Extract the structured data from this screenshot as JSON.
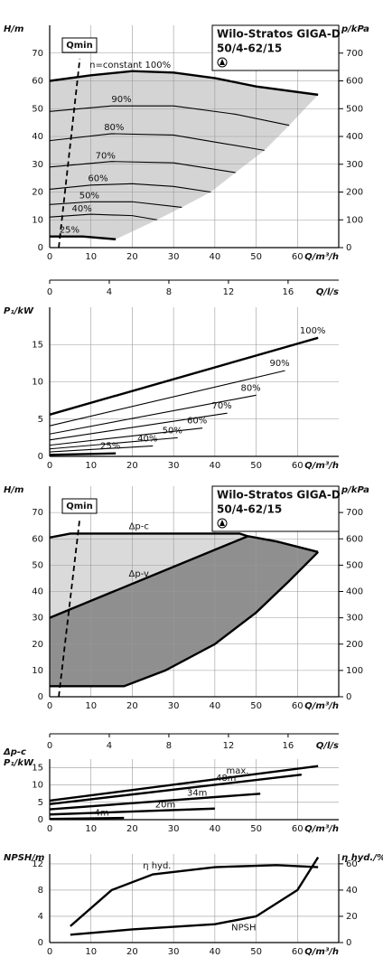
{
  "chart_data": [
    {
      "type": "line",
      "title": "Wilo-Stratos GIGA-D",
      "subtitle": "50/4-62/15",
      "y_label": "H/m",
      "y2_label": "p/kPa",
      "x_label": "Q/m³/h",
      "xlim": [
        0,
        70
      ],
      "xticks": [
        0,
        10,
        20,
        30,
        40,
        50,
        60
      ],
      "ylim": [
        0,
        80
      ],
      "yticks": [
        0,
        10,
        20,
        30,
        40,
        50,
        60,
        70
      ],
      "y2lim": [
        0,
        800
      ],
      "y2ticks": [
        0,
        100,
        200,
        300,
        400,
        500,
        600,
        700
      ],
      "grid": true,
      "fill": "#d4d4d4",
      "qmin": {
        "label": "Qmin",
        "x": [
          2.2,
          7.3
        ],
        "values": [
          0,
          68
        ]
      },
      "series": [
        {
          "name": "n=constant 100%",
          "color": "#000",
          "bold": true,
          "x": [
            0,
            10,
            20,
            30,
            40,
            50,
            65
          ],
          "values": [
            60,
            62,
            63.5,
            63,
            61,
            58,
            55
          ]
        },
        {
          "name": "90%",
          "color": "#000",
          "x": [
            0,
            15,
            30,
            45,
            58
          ],
          "values": [
            49,
            51,
            51,
            48,
            44
          ]
        },
        {
          "name": "80%",
          "color": "#000",
          "x": [
            0,
            15,
            30,
            40,
            52
          ],
          "values": [
            38.5,
            41,
            40.5,
            38,
            35
          ]
        },
        {
          "name": "70%",
          "color": "#000",
          "x": [
            0,
            15,
            30,
            45
          ],
          "values": [
            29,
            31,
            30.5,
            27
          ]
        },
        {
          "name": "60%",
          "color": "#000",
          "x": [
            0,
            10,
            20,
            30,
            39
          ],
          "values": [
            21,
            22.5,
            23,
            22,
            20
          ]
        },
        {
          "name": "50%",
          "color": "#000",
          "x": [
            0,
            10,
            20,
            32
          ],
          "values": [
            15.5,
            16.5,
            16.5,
            14.5
          ]
        },
        {
          "name": "40%",
          "color": "#000",
          "x": [
            0,
            10,
            20,
            26
          ],
          "values": [
            11,
            12,
            11.5,
            10
          ]
        },
        {
          "name": "25%",
          "color": "#000",
          "bold": true,
          "x": [
            0,
            8,
            16
          ],
          "values": [
            4,
            4,
            3
          ]
        }
      ]
    },
    {
      "type": "axis",
      "x_label": "Q/l/s",
      "xlim": [
        0,
        19.4
      ],
      "xticks": [
        0,
        4,
        8,
        12,
        16
      ]
    },
    {
      "type": "line",
      "y_label": "P₁/kW",
      "x_label": "Q/m³/h",
      "xlim": [
        0,
        70
      ],
      "xticks": [
        0,
        10,
        20,
        30,
        40,
        50,
        60
      ],
      "ylim": [
        0,
        20
      ],
      "yticks": [
        0,
        5,
        10,
        15
      ],
      "grid": true,
      "series": [
        {
          "name": "100%",
          "color": "#000",
          "bold": true,
          "x": [
            0,
            65
          ],
          "values": [
            5.6,
            15.9
          ]
        },
        {
          "name": "90%",
          "color": "#000",
          "x": [
            0,
            57
          ],
          "values": [
            4.1,
            11.5
          ]
        },
        {
          "name": "80%",
          "color": "#000",
          "x": [
            0,
            50
          ],
          "values": [
            3,
            8.2
          ]
        },
        {
          "name": "70%",
          "color": "#000",
          "x": [
            0,
            43
          ],
          "values": [
            2.2,
            5.8
          ]
        },
        {
          "name": "60%",
          "color": "#000",
          "x": [
            0,
            37
          ],
          "values": [
            1.5,
            3.8
          ]
        },
        {
          "name": "50%",
          "color": "#000",
          "x": [
            0,
            31
          ],
          "values": [
            1,
            2.5
          ]
        },
        {
          "name": "40%",
          "color": "#000",
          "x": [
            0,
            25
          ],
          "values": [
            0.6,
            1.4
          ]
        },
        {
          "name": "25%",
          "color": "#000",
          "bold": true,
          "x": [
            0,
            16
          ],
          "values": [
            0.2,
            0.4
          ]
        }
      ]
    },
    {
      "type": "line",
      "title": "Wilo-Stratos GIGA-D",
      "subtitle": "50/4-62/15",
      "y_label": "H/m",
      "y2_label": "p/kPa",
      "x_label": "Q/m³/h",
      "xlim": [
        0,
        70
      ],
      "xticks": [
        0,
        10,
        20,
        30,
        40,
        50,
        60
      ],
      "ylim": [
        0,
        80
      ],
      "yticks": [
        0,
        10,
        20,
        30,
        40,
        50,
        60,
        70
      ],
      "y2lim": [
        0,
        800
      ],
      "y2ticks": [
        0,
        100,
        200,
        300,
        400,
        500,
        600,
        700
      ],
      "grid": true,
      "fills": [
        "#dadada",
        "#8f8f8f"
      ],
      "qmin": {
        "label": "Qmin",
        "x": [
          2.2,
          7.3
        ],
        "values": [
          0,
          68
        ]
      },
      "series": [
        {
          "name": "Δp-c",
          "color": "#000",
          "bold": true,
          "x": [
            0,
            5,
            46,
            48
          ],
          "values": [
            60.5,
            62,
            62,
            61
          ]
        },
        {
          "name": "Δp-v",
          "color": "#000",
          "bold": true,
          "x": [
            0,
            48
          ],
          "values": [
            30,
            61
          ]
        },
        {
          "color": "#000",
          "bold": true,
          "x": [
            48,
            55,
            65
          ],
          "values": [
            61,
            59,
            55
          ]
        },
        {
          "color": "#000",
          "bold": true,
          "x": [
            0,
            18,
            28,
            40,
            50,
            58,
            65
          ],
          "values": [
            4,
            4,
            10,
            20,
            32,
            44,
            55
          ]
        }
      ]
    },
    {
      "type": "axis",
      "x_label": "Q/l/s",
      "xlim": [
        0,
        19.4
      ],
      "xticks": [
        0,
        4,
        8,
        12,
        16
      ]
    },
    {
      "type": "line",
      "y_label": "P₁/kW",
      "y_label_top": "Δp-c",
      "x_label": "Q/m³/h",
      "xlim": [
        0,
        70
      ],
      "xticks": [
        0,
        10,
        20,
        30,
        40,
        50,
        60
      ],
      "ylim": [
        0,
        17.5
      ],
      "yticks": [
        0,
        5,
        10,
        15
      ],
      "grid": true,
      "series": [
        {
          "name": "max.",
          "color": "#000",
          "bold": true,
          "x": [
            0,
            65
          ],
          "values": [
            5.5,
            15.5
          ]
        },
        {
          "name": "48m",
          "color": "#000",
          "bold": true,
          "x": [
            0,
            61
          ],
          "values": [
            4.5,
            13
          ]
        },
        {
          "name": "34m",
          "color": "#000",
          "bold": true,
          "x": [
            0,
            51
          ],
          "values": [
            3,
            7.5
          ]
        },
        {
          "name": "20m",
          "color": "#000",
          "bold": true,
          "x": [
            0,
            40
          ],
          "values": [
            1.5,
            3.2
          ]
        },
        {
          "name": "4m",
          "color": "#000",
          "bold": true,
          "x": [
            0,
            18
          ],
          "values": [
            0.2,
            0.5
          ]
        }
      ]
    },
    {
      "type": "line",
      "y_label": "NPSH/m",
      "y2_label": "η hyd./%",
      "x_label": "Q/m³/h",
      "xlim": [
        0,
        70
      ],
      "xticks": [
        0,
        10,
        20,
        30,
        40,
        50,
        60
      ],
      "ylim": [
        0,
        13.5
      ],
      "yticks": [
        0,
        4,
        8,
        12
      ],
      "y2lim": [
        0,
        67.5
      ],
      "y2ticks": [
        0,
        20,
        40,
        60
      ],
      "grid": true,
      "series": [
        {
          "name": "η hyd.",
          "color": "#000",
          "bold": true,
          "axis": "y2",
          "x": [
            5,
            15,
            25,
            40,
            55,
            65
          ],
          "values": [
            12.5,
            40,
            52,
            57.5,
            59,
            57.5
          ]
        },
        {
          "name": "NPSH",
          "color": "#000",
          "bold": true,
          "x": [
            5,
            20,
            40,
            50,
            60,
            65
          ],
          "values": [
            1.2,
            2,
            2.8,
            4,
            8,
            13
          ]
        }
      ]
    }
  ]
}
